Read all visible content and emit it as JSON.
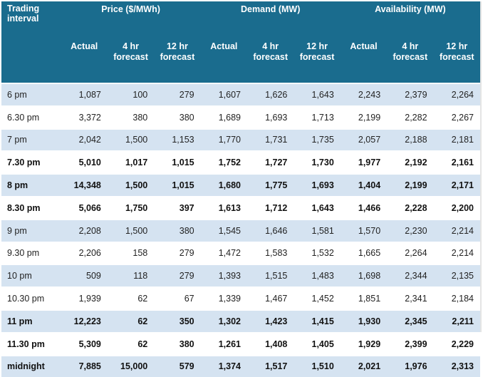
{
  "header": {
    "interval_label": "Trading interval",
    "price_group": "Price ($/MWh)",
    "demand_group": "Demand (MW)",
    "availability_group": "Availability (MW)",
    "actual": "Actual",
    "four_hr": "4 hr forecast",
    "twelve_hr": "12 hr forecast"
  },
  "colors": {
    "header_bg": "#1a6c8e",
    "row_blue": "#d5e3f1",
    "row_white": "#ffffff"
  },
  "rows": [
    {
      "interval": "6 pm",
      "bold": false,
      "values": [
        "1,087",
        "100",
        "279",
        "1,607",
        "1,626",
        "1,643",
        "2,243",
        "2,379",
        "2,264"
      ]
    },
    {
      "interval": "6.30 pm",
      "bold": false,
      "values": [
        "3,372",
        "380",
        "380",
        "1,689",
        "1,693",
        "1,713",
        "2,199",
        "2,282",
        "2,267"
      ]
    },
    {
      "interval": "7 pm",
      "bold": false,
      "values": [
        "2,042",
        "1,500",
        "1,153",
        "1,770",
        "1,731",
        "1,735",
        "2,057",
        "2,188",
        "2,181"
      ]
    },
    {
      "interval": "7.30 pm",
      "bold": true,
      "values": [
        "5,010",
        "1,017",
        "1,015",
        "1,752",
        "1,727",
        "1,730",
        "1,977",
        "2,192",
        "2,161"
      ]
    },
    {
      "interval": "8 pm",
      "bold": true,
      "values": [
        "14,348",
        "1,500",
        "1,015",
        "1,680",
        "1,775",
        "1,693",
        "1,404",
        "2,199",
        "2,171"
      ]
    },
    {
      "interval": "8.30 pm",
      "bold": true,
      "values": [
        "5,066",
        "1,750",
        "397",
        "1,613",
        "1,712",
        "1,643",
        "1,466",
        "2,228",
        "2,200"
      ]
    },
    {
      "interval": "9 pm",
      "bold": false,
      "values": [
        "2,208",
        "1,500",
        "380",
        "1,545",
        "1,646",
        "1,581",
        "1,570",
        "2,230",
        "2,214"
      ]
    },
    {
      "interval": "9.30 pm",
      "bold": false,
      "values": [
        "2,206",
        "158",
        "279",
        "1,472",
        "1,583",
        "1,532",
        "1,665",
        "2,264",
        "2,214"
      ]
    },
    {
      "interval": "10 pm",
      "bold": false,
      "values": [
        "509",
        "118",
        "279",
        "1,393",
        "1,515",
        "1,483",
        "1,698",
        "2,344",
        "2,135"
      ]
    },
    {
      "interval": "10.30 pm",
      "bold": false,
      "values": [
        "1,939",
        "62",
        "67",
        "1,339",
        "1,467",
        "1,452",
        "1,851",
        "2,341",
        "2,184"
      ]
    },
    {
      "interval": "11 pm",
      "bold": true,
      "values": [
        "12,223",
        "62",
        "350",
        "1,302",
        "1,423",
        "1,415",
        "1,930",
        "2,345",
        "2,211"
      ]
    },
    {
      "interval": "11.30 pm",
      "bold": true,
      "values": [
        "5,309",
        "62",
        "380",
        "1,261",
        "1,408",
        "1,405",
        "1,929",
        "2,399",
        "2,229"
      ]
    },
    {
      "interval": "midnight",
      "bold": true,
      "values": [
        "7,885",
        "15,000",
        "579",
        "1,374",
        "1,517",
        "1,510",
        "2,021",
        "1,976",
        "2,313"
      ]
    }
  ]
}
